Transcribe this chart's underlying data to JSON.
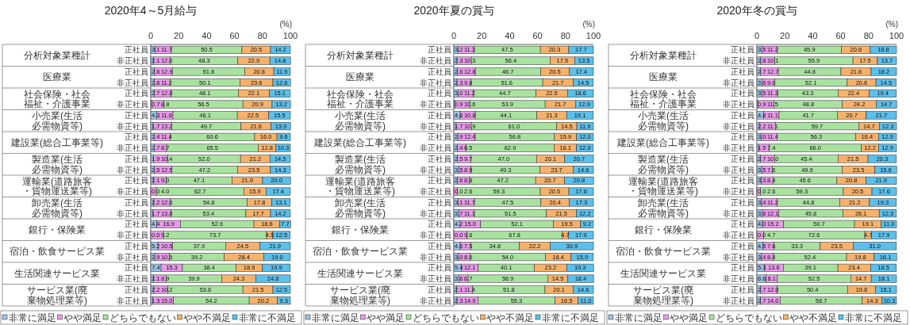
{
  "chart_data": [
    {
      "type": "bar",
      "orientation": "horizontal",
      "stacked": true,
      "legend": "bottom",
      "title": "2020年4～5月給与",
      "xlabel": "(%)",
      "xlim": [
        0,
        100
      ],
      "xticks": [
        0,
        20,
        40,
        60,
        80,
        100
      ],
      "categories": [
        "正社員",
        "非正社員",
        "正社員",
        "非正社員",
        "正社員",
        "非正社員",
        "正社員",
        "非正社員",
        "正社員",
        "非正社員",
        "正社員",
        "非正社員",
        "正社員",
        "非正社員",
        "正社員",
        "非正社員",
        "正社員",
        "非正社員",
        "正社員",
        "非正社員",
        "正社員",
        "非正社員",
        "正社員",
        "非正社員"
      ],
      "annotations": [
        "分析対象業種計",
        "医療業",
        "社会保険・社会福祉・介護事業",
        "小売業(生活必需物資等)",
        "建設業(総合工事業等)",
        "製造業(生活必需物資等)",
        "運輸業(道路旅客・貨物運送業等)",
        "卸売業(生活必需物資等)",
        "銀行・保険業",
        "宿泊・飲食サービス業",
        "生活関連サービス業",
        "サービス業(廃棄物処理業等)"
      ],
      "series": [
        {
          "name": "非常に満足",
          "color": "#9dc3e6",
          "values": [
            3.1,
            2.1,
            2.6,
            2.6,
            2.7,
            0.7,
            4.3,
            1.7,
            2.4,
            2.7,
            1.9,
            2.5,
            2.1,
            0.0,
            2.2,
            1.7,
            4.4,
            0.0,
            5.2,
            2.9,
            7.4,
            2.1,
            2.2,
            1.3
          ],
          "value_labels": [
            "3.1",
            "2.1",
            "2.6",
            "2.6",
            "2.7",
            "0.7",
            "4.3",
            "1.7",
            "2.4",
            "2.7",
            "1.9",
            "2.5",
            "2.1",
            "0.0",
            "2.2",
            "1.7",
            "4.4",
            "0.0",
            "5.2",
            "2.9",
            "7.4",
            "2.1",
            "2.2",
            "1.3"
          ]
        },
        {
          "name": "やや満足",
          "color": "#e89ae8",
          "values": [
            11.7,
            12.0,
            12.9,
            11.2,
            12.0,
            8.8,
            11.6,
            13.2,
            11.4,
            8.7,
            10.4,
            12.5,
            9.0,
            4.0,
            12.0,
            13.0,
            16.9,
            9.2,
            10.5,
            10.5,
            15.3,
            8.9,
            10.2,
            15.0
          ],
          "value_labels": [
            "11.7",
            "12.0",
            "12.9",
            "11.2",
            "12.0",
            "8.8",
            "11.6",
            "13.2",
            "11.4",
            "8.7",
            "10.4",
            "12.5",
            "9.0",
            "4.0",
            "12.0",
            "13.0",
            "16.9",
            "9.2",
            "10.5",
            "10.5",
            "15.3",
            "8.9",
            "10.2",
            "15.0"
          ]
        },
        {
          "name": "どちらでもない",
          "color": "#a9e2a0",
          "values": [
            50.5,
            48.3,
            51.8,
            50.1,
            48.1,
            56.5,
            46.1,
            49.7,
            60.6,
            65.5,
            52.0,
            47.2,
            47.1,
            62.7,
            54.8,
            53.4,
            52.6,
            73.7,
            37.9,
            39.2,
            38.4,
            39.9,
            53.6,
            54.2
          ],
          "value_labels": [
            "50.5",
            "48.3",
            "51.8",
            "50.1",
            "48.1",
            "56.5",
            "46.1",
            "49.7",
            "60.6",
            "65.5",
            "52.0",
            "47.2",
            "47.1",
            "62.7",
            "54.8",
            "53.4",
            "52.6",
            "73.7",
            "37.9",
            "39.2",
            "38.4",
            "39.9",
            "53.6",
            "54.2"
          ]
        },
        {
          "name": "やや不満足",
          "color": "#f6b26b",
          "values": [
            20.5,
            22.9,
            20.8,
            23.6,
            22.1,
            20.9,
            22.5,
            21.6,
            16.0,
            12.8,
            21.2,
            23.5,
            21.9,
            15.9,
            17.8,
            17.7,
            18.6,
            4.5,
            24.5,
            28.4,
            18.9,
            24.3,
            21.5,
            20.2
          ],
          "value_labels": [
            "20.5",
            "22.9",
            "20.8",
            "23.6",
            "22.1",
            "20.9",
            "22.5",
            "21.6",
            "16.0",
            "12.8",
            "21.2",
            "23.5",
            "21.9",
            "15.9",
            "17.8",
            "17.7",
            "18.6",
            "4.5",
            "24.5",
            "28.4",
            "18.9",
            "24.3",
            "21.5",
            "20.2"
          ]
        },
        {
          "name": "非常に不満足",
          "color": "#5bc0eb",
          "values": [
            14.2,
            14.8,
            11.9,
            12.6,
            15.1,
            13.2,
            15.5,
            13.9,
            9.6,
            10.3,
            14.5,
            14.3,
            20.0,
            17.4,
            13.1,
            14.2,
            7.7,
            12.5,
            21.9,
            19.0,
            19.9,
            24.8,
            12.5,
            9.3
          ],
          "value_labels": [
            "14.2",
            "14.8",
            "11.9",
            "12.6",
            "15.1",
            "13.2",
            "15.5",
            "13.9",
            "9.6",
            "10.3",
            "14.5",
            "14.3",
            "20.0",
            "17.4",
            "13.1",
            "14.2",
            "7.7",
            "12.5",
            "21.9",
            "19.0",
            "19.9",
            "24.8",
            "12.5",
            "9.3"
          ]
        }
      ]
    },
    {
      "type": "bar",
      "orientation": "horizontal",
      "stacked": true,
      "legend": "bottom",
      "title": "2020年夏の賞与",
      "xlabel": "(%)",
      "xlim": [
        0,
        100
      ],
      "xticks": [
        0,
        20,
        40,
        60,
        80,
        100
      ],
      "categories": [
        "正社員",
        "非正社員",
        "正社員",
        "非正社員",
        "正社員",
        "非正社員",
        "正社員",
        "非正社員",
        "正社員",
        "非正社員",
        "正社員",
        "非正社員",
        "正社員",
        "非正社員",
        "正社員",
        "非正社員",
        "正社員",
        "非正社員",
        "正社員",
        "非正社員",
        "正社員",
        "非正社員",
        "正社員",
        "非正社員"
      ],
      "annotations": [
        "分析対象業種計",
        "医療業",
        "社会保険・社会福祉・介護事業",
        "小売業(生活必需物資等)",
        "建設業(総合工事業等)",
        "製造業(生活必需物資等)",
        "運輸業(道路旅客・貨物運送業等)",
        "卸売業(生活必需物資等)",
        "銀行・保険業",
        "宿泊・飲食サービス業",
        "生活関連サービス業",
        "サービス業(廃棄物処理業等)"
      ],
      "series": [
        {
          "name": "非常に満足",
          "color": "#9dc3e6",
          "values": [
            3.2,
            2.3,
            2.6,
            2.3,
            3.0,
            0.9,
            4.6,
            1.7,
            2.9,
            2.4,
            2.5,
            3.5,
            2.6,
            0.0,
            3.1,
            3.7,
            4.2,
            0.0,
            4.6,
            3.0,
            5.4,
            3.6,
            2.1,
            2.3
          ],
          "value_labels": [
            "3.2",
            "2.3",
            "2.6",
            "2.3",
            "3.0",
            "0.9",
            "4.6",
            "1.7",
            "2.9",
            "2.4",
            "2.5",
            "3.5",
            "2.6",
            "0.0",
            "3.1",
            "3.7",
            "4.2",
            "0.0",
            "4.6",
            "3.0",
            "5.4",
            "3.6",
            "2.1",
            "2.3"
          ]
        },
        {
          "name": "やや満足",
          "color": "#e89ae8",
          "values": [
            11.3,
            10.3,
            12.8,
            9.8,
            11.2,
            10.6,
            10.8,
            10.9,
            12.4,
            6.5,
            9.7,
            8.9,
            8.8,
            2.6,
            11.7,
            11.1,
            15.0,
            9.6,
            7.5,
            8.6,
            12.1,
            6.7,
            11.4,
            14.9
          ],
          "value_labels": [
            "11.3",
            "10.3",
            "12.8",
            "9.8",
            "11.2",
            "10.6",
            "10.8",
            "10.9",
            "12.4",
            "6.5",
            "9.7",
            "8.9",
            "8.8",
            "2.6",
            "11.7",
            "11.1",
            "15.0",
            "9.6",
            "7.5",
            "8.6",
            "12.1",
            "6.7",
            "11.4",
            "14.9"
          ]
        },
        {
          "name": "どちらでもない",
          "color": "#a9e2a0",
          "values": [
            47.5,
            56.4,
            46.7,
            51.6,
            44.7,
            53.9,
            44.1,
            61.0,
            56.8,
            62.9,
            47.0,
            49.3,
            47.2,
            59.3,
            47.5,
            51.5,
            52.1,
            67.8,
            34.8,
            54.0,
            40.1,
            56.9,
            51.8,
            55.3
          ],
          "value_labels": [
            "47.5",
            "56.4",
            "46.7",
            "51.6",
            "44.7",
            "53.9",
            "44.1",
            "61.0",
            "56.8",
            "62.9",
            "47.0",
            "49.3",
            "47.2",
            "59.3",
            "47.5",
            "51.5",
            "52.1",
            "67.8",
            "34.8",
            "54.0",
            "40.1",
            "56.9",
            "51.8",
            "55.3"
          ]
        },
        {
          "name": "やや不満足",
          "color": "#f6b26b",
          "values": [
            20.3,
            17.5,
            20.5,
            21.7,
            22.5,
            21.7,
            21.3,
            14.5,
            15.9,
            16.1,
            20.1,
            23.7,
            20.7,
            20.5,
            20.4,
            21.5,
            19.5,
            4.7,
            22.2,
            18.4,
            23.2,
            14.5,
            20.1,
            16.5
          ],
          "value_labels": [
            "20.3",
            "17.5",
            "20.5",
            "21.7",
            "22.5",
            "21.7",
            "21.3",
            "14.5",
            "15.9",
            "16.1",
            "20.1",
            "23.7",
            "20.7",
            "20.5",
            "20.4",
            "21.5",
            "19.5",
            "4.7",
            "22.2",
            "18.4",
            "23.2",
            "14.5",
            "20.1",
            "16.5"
          ]
        },
        {
          "name": "非常に不満足",
          "color": "#5bc0eb",
          "values": [
            17.7,
            13.5,
            17.4,
            14.5,
            18.6,
            12.9,
            19.1,
            11.9,
            12.0,
            12.0,
            20.7,
            14.6,
            20.8,
            17.6,
            17.3,
            12.2,
            9.2,
            17.9,
            30.9,
            15.9,
            19.3,
            18.4,
            14.6,
            11.0
          ],
          "value_labels": [
            "17.7",
            "13.5",
            "17.4",
            "14.5",
            "18.6",
            "12.9",
            "19.1",
            "11.9",
            "12.0",
            "12.0",
            "20.7",
            "14.6",
            "20.8",
            "17.6",
            "17.3",
            "12.2",
            "9.2",
            "17.9",
            "30.9",
            "15.9",
            "19.3",
            "18.4",
            "14.6",
            "11.0"
          ]
        }
      ]
    },
    {
      "type": "bar",
      "orientation": "horizontal",
      "stacked": true,
      "legend": "bottom",
      "title": "2020年冬の賞与",
      "xlabel": "(%)",
      "xlim": [
        0,
        100
      ],
      "xticks": [
        0,
        20,
        40,
        60,
        80,
        100
      ],
      "categories": [
        "正社員",
        "非正社員",
        "正社員",
        "非正社員",
        "正社員",
        "非正社員",
        "正社員",
        "非正社員",
        "正社員",
        "非正社員",
        "正社員",
        "非正社員",
        "正社員",
        "非正社員",
        "正社員",
        "非正社員",
        "正社員",
        "非正社員",
        "正社員",
        "非正社員",
        "正社員",
        "非正社員",
        "正社員",
        "非正社員"
      ],
      "annotations": [
        "分析対象業種計",
        "医療業",
        "社会保険・社会福祉・介護事業",
        "小売業(生活必需物資等)",
        "建設業(総合工事業等)",
        "製造業(生活必需物資等)",
        "運輸業(道路旅客・貨物運送業等)",
        "卸売業(生活必需物資等)",
        "銀行・保険業",
        "宿泊・飲食サービス業",
        "生活関連サービス業",
        "サービス業(廃棄物処理業等)"
      ],
      "series": [
        {
          "name": "非常に満足",
          "color": "#9dc3e6",
          "values": [
            3.5,
            2.8,
            2.7,
            3.6,
            3.5,
            0.9,
            4.8,
            2.2,
            3.0,
            1.5,
            2.7,
            3.5,
            3.3,
            0.0,
            3.4,
            3.6,
            4.0,
            0.0,
            4.5,
            3.4,
            5.3,
            6.6,
            2.7,
            2.7
          ],
          "value_labels": [
            "3.5",
            "2.8",
            "2.7",
            "3.6",
            "3.5",
            "0.9",
            "4.8",
            "2.2",
            "3.0",
            "1.5",
            "2.7",
            "3.5",
            "3.3",
            "0.0",
            "3.4",
            "3.6",
            "4.0",
            "0.0",
            "4.5",
            "3.4",
            "5.3",
            "6.6",
            "2.7",
            "2.7"
          ]
        },
        {
          "name": "やや満足",
          "color": "#e89ae8",
          "values": [
            11.2,
            10.1,
            12.7,
            9.0,
            11.3,
            11.5,
            11.1,
            11.1,
            11.4,
            7.4,
            10.0,
            7.6,
            8.4,
            2.6,
            11.2,
            12.1,
            15.2,
            4.7,
            7.6,
            8.4,
            13.6,
            8.1,
            12.0,
            14.0
          ],
          "value_labels": [
            "11.2",
            "10.1",
            "12.7",
            "9.0",
            "11.3",
            "11.5",
            "11.1",
            "11.1",
            "11.4",
            "7.4",
            "10.0",
            "7.6",
            "8.4",
            "2.6",
            "11.2",
            "12.1",
            "15.2",
            "4.7",
            "7.6",
            "8.4",
            "13.6",
            "8.1",
            "12.0",
            "14.0"
          ]
        },
        {
          "name": "どちらでもない",
          "color": "#a9e2a0",
          "values": [
            45.9,
            55.9,
            44.8,
            52.1,
            43.3,
            48.8,
            41.7,
            59.7,
            56.3,
            66.0,
            45.4,
            49.9,
            45.6,
            59.3,
            44.8,
            45.8,
            50.7,
            72.6,
            33.3,
            52.4,
            39.1,
            52.5,
            50.4,
            58.7
          ],
          "value_labels": [
            "45.9",
            "55.9",
            "44.8",
            "52.1",
            "43.3",
            "48.8",
            "41.7",
            "59.7",
            "56.3",
            "66.0",
            "45.4",
            "49.9",
            "45.6",
            "59.3",
            "44.8",
            "45.8",
            "50.7",
            "72.6",
            "33.3",
            "52.4",
            "39.1",
            "52.5",
            "50.4",
            "58.7"
          ]
        },
        {
          "name": "やや不満足",
          "color": "#f6b26b",
          "values": [
            20.6,
            17.5,
            21.6,
            20.6,
            22.4,
            24.2,
            20.7,
            14.7,
            16.4,
            12.2,
            21.5,
            23.5,
            20.8,
            20.5,
            21.2,
            26.1,
            19.1,
            4.7,
            23.5,
            19.8,
            23.4,
            14.7,
            19.8,
            14.3
          ],
          "value_labels": [
            "20.6",
            "17.5",
            "21.6",
            "20.6",
            "22.4",
            "24.2",
            "20.7",
            "14.7",
            "16.4",
            "12.2",
            "21.5",
            "23.5",
            "20.8",
            "20.5",
            "21.2",
            "26.1",
            "19.1",
            "4.7",
            "23.5",
            "19.8",
            "23.4",
            "14.7",
            "19.8",
            "14.3"
          ]
        },
        {
          "name": "非常に不満足",
          "color": "#5bc0eb",
          "values": [
            18.8,
            13.7,
            18.2,
            14.5,
            19.4,
            14.7,
            21.7,
            12.3,
            12.9,
            12.9,
            20.3,
            15.6,
            21.9,
            17.6,
            19.3,
            12.3,
            11.0,
            17.9,
            31.0,
            16.1,
            18.5,
            18.1,
            15.1,
            10.3
          ],
          "value_labels": [
            "18.8",
            "13.7",
            "18.2",
            "14.5",
            "19.4",
            "14.7",
            "21.7",
            "12.3",
            "12.9",
            "12.9",
            "20.3",
            "15.6",
            "21.9",
            "17.6",
            "19.3",
            "12.3",
            "11.0",
            "17.9",
            "31.0",
            "16.1",
            "18.5",
            "18.1",
            "15.1",
            "10.3"
          ]
        }
      ]
    }
  ]
}
